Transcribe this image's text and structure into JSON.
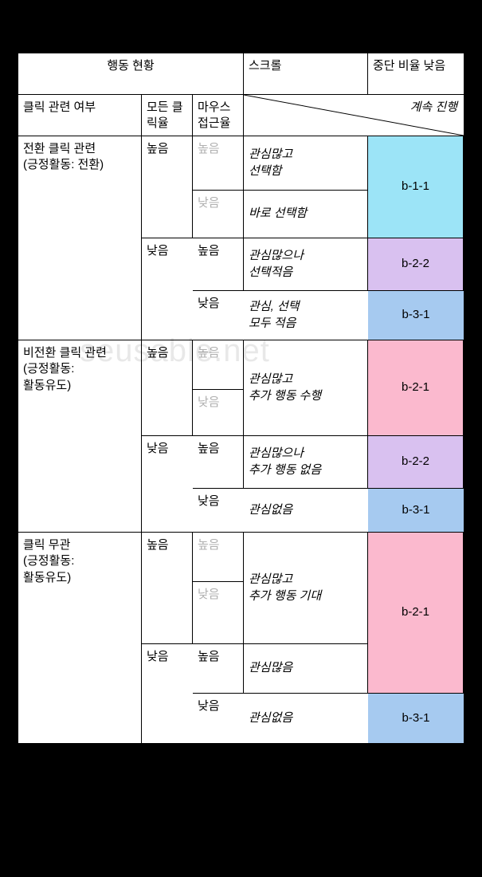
{
  "colors": {
    "b11": "#9ce4f7",
    "b21": "#fbb9ce",
    "b22": "#d9c1f0",
    "b31": "#a6caf0"
  },
  "header": {
    "behavior": "행동 현황",
    "scroll": "스크롤",
    "abort": "중단 비율\n낮음",
    "click_related": "클릭 관련 여부",
    "all_click_rate": "모든\n클릭율",
    "mouse_access": "마우스\n접근율",
    "continue": "계속 진행"
  },
  "levels": {
    "high": "높음",
    "low": "낮음",
    "high_gray": "높음",
    "low_gray": "낮음"
  },
  "groups": [
    {
      "title": "전환 클릭 관련\n(긍정활동: 전환)",
      "blocks": [
        {
          "click": "high",
          "mouse": "high_gray",
          "desc": "관심많고\n선택함",
          "tag": "b-1-1",
          "tagColor": "b11",
          "mergeNextTag": true
        },
        {
          "click": "",
          "mouse": "low_gray",
          "desc": "바로 선택함",
          "tag": ""
        },
        {
          "click": "low",
          "mouse": "high",
          "desc": "관심많으나\n선택적음",
          "tag": "b-2-2",
          "tagColor": "b22"
        },
        {
          "click": "",
          "mouse": "low",
          "desc": "관심, 선택\n모두 적음",
          "tag": "b-3-1",
          "tagColor": "b31"
        }
      ]
    },
    {
      "title": "비전환 클릭 관련\n(긍정활동:\n활동유도)",
      "blocks": [
        {
          "click": "high",
          "mouse": "high_gray",
          "desc": "",
          "tag": "b-2-1",
          "tagColor": "b21",
          "mergeNextDesc": true,
          "mergeNextTag": true
        },
        {
          "click": "",
          "mouse": "low_gray",
          "desc": "관심많고\n추가 행동 수행",
          "tag": ""
        },
        {
          "click": "low",
          "mouse": "high",
          "desc": "관심많으나\n추가 행동 없음",
          "tag": "b-2-2",
          "tagColor": "b22"
        },
        {
          "click": "",
          "mouse": "low",
          "desc": "관심없음",
          "tag": "b-3-1",
          "tagColor": "b31"
        }
      ]
    },
    {
      "title": "클릭 무관\n(긍정활동:\n활동유도)",
      "blocks": [
        {
          "click": "high",
          "mouse": "high_gray",
          "desc": "",
          "tag": "b-2-1",
          "tagColor": "b21",
          "mergeNextDesc": true,
          "mergeNextTag": true,
          "extendTagRows": 3
        },
        {
          "click": "",
          "mouse": "low_gray",
          "desc": "관심많고\n추가 행동 기대",
          "tag": ""
        },
        {
          "click": "low",
          "mouse": "high",
          "desc": "관심많음",
          "tag": ""
        },
        {
          "click": "",
          "mouse": "low",
          "desc": "관심없음",
          "tag": "b-3-1",
          "tagColor": "b31"
        }
      ]
    }
  ],
  "watermark": "seusable.net",
  "rowHeights": {
    "hdr1": 52,
    "hdr2": 52,
    "g0": [
      68,
      60,
      66,
      62
    ],
    "g1": [
      62,
      58,
      66,
      55
    ],
    "g2": [
      62,
      78,
      62,
      62
    ]
  }
}
